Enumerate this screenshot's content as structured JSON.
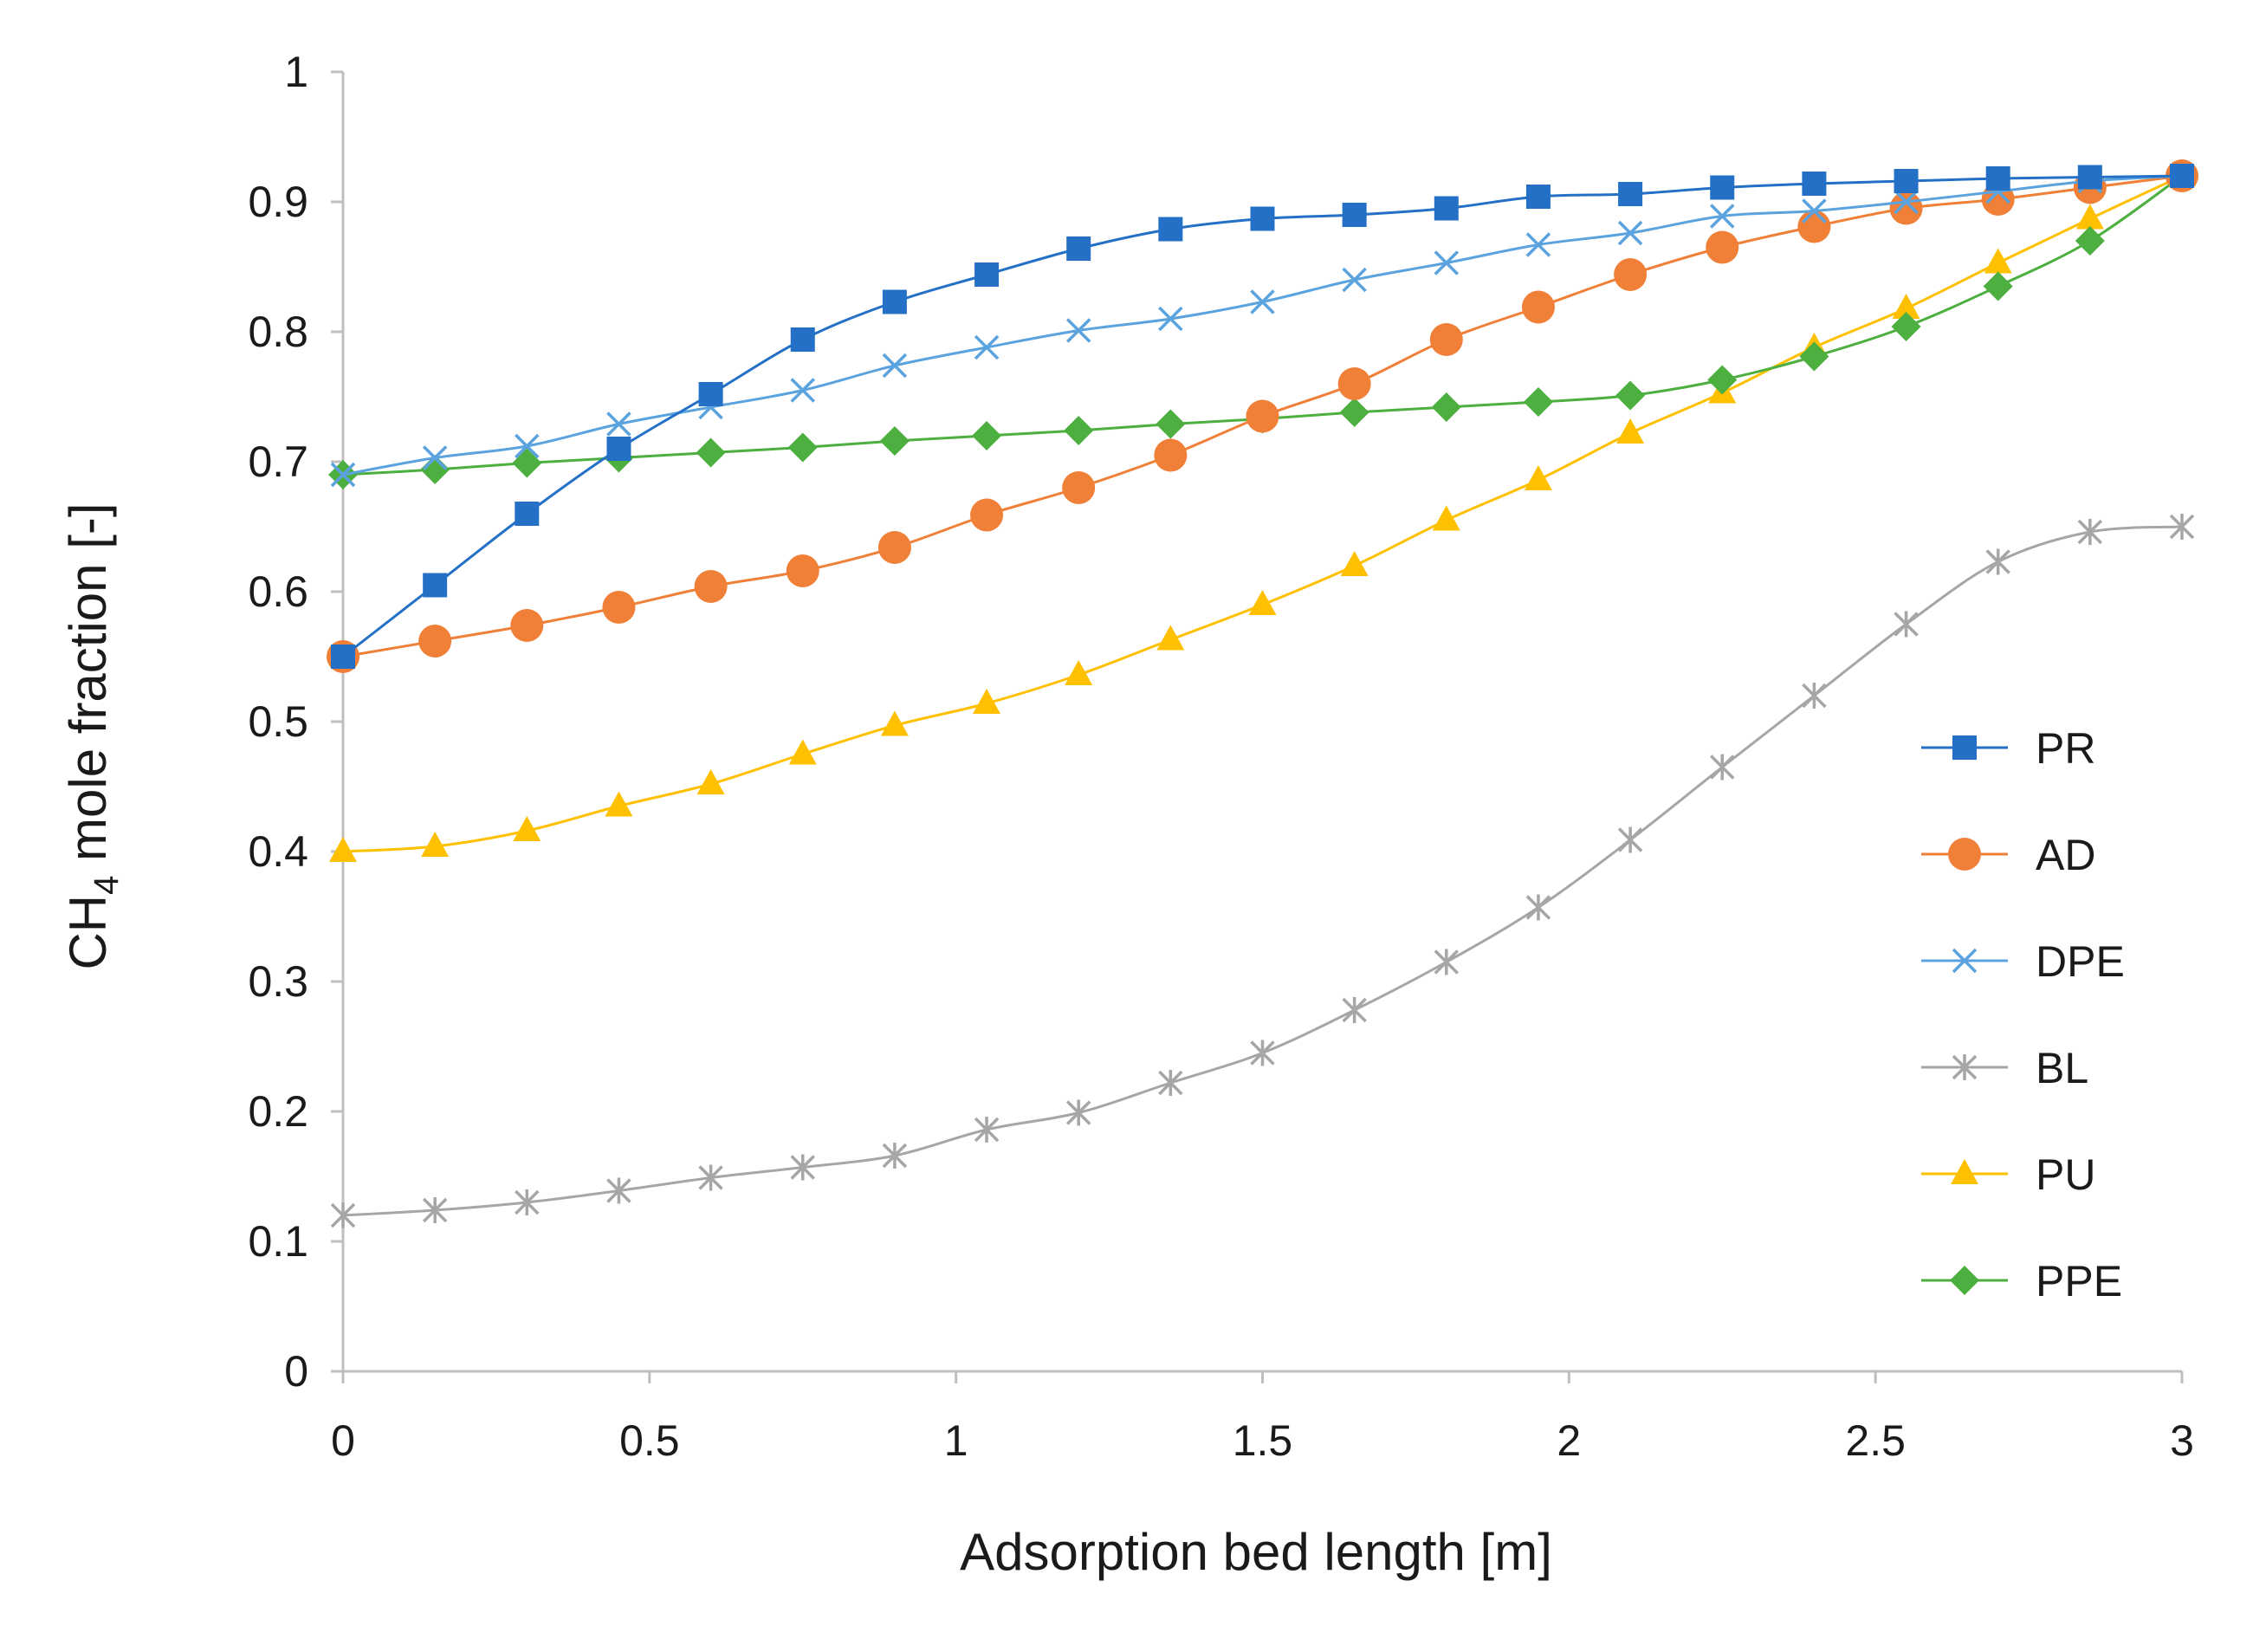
{
  "chart_data": {
    "type": "line",
    "title": "",
    "xlabel": "Adsorption bed length [m]",
    "ylabel_main": "CH",
    "ylabel_sub": "4",
    "ylabel_rest": " mole fraction [-]",
    "xlim": [
      0,
      3
    ],
    "ylim": [
      0,
      1
    ],
    "xticks": [
      0,
      0.5,
      1,
      1.5,
      2,
      2.5,
      3
    ],
    "xtick_labels": [
      "0",
      "0.5",
      "1",
      "1.5",
      "2",
      "2.5",
      "3"
    ],
    "yticks": [
      0,
      0.1,
      0.2,
      0.3,
      0.4,
      0.5,
      0.6,
      0.7,
      0.8,
      0.9,
      1
    ],
    "ytick_labels": [
      "0",
      "0.1",
      "0.2",
      "0.3",
      "0.4",
      "0.5",
      "0.6",
      "0.7",
      "0.8",
      "0.9",
      "1"
    ],
    "grid": false,
    "legend_position": "right",
    "x": [
      0,
      0.15,
      0.3,
      0.45,
      0.6,
      0.75,
      0.9,
      1.05,
      1.2,
      1.35,
      1.5,
      1.65,
      1.8,
      1.95,
      2.1,
      2.25,
      2.4,
      2.55,
      2.7,
      2.85,
      3.0
    ],
    "series": [
      {
        "name": "PR",
        "color": "#2470C6",
        "marker": "square",
        "values": [
          0.55,
          0.605,
          0.66,
          0.71,
          0.752,
          0.794,
          0.823,
          0.844,
          0.864,
          0.879,
          0.887,
          0.89,
          0.895,
          0.904,
          0.906,
          0.911,
          0.914,
          0.916,
          0.918,
          0.919,
          0.92
        ]
      },
      {
        "name": "AD",
        "color": "#F07F37",
        "marker": "circle",
        "values": [
          0.55,
          0.562,
          0.574,
          0.588,
          0.604,
          0.616,
          0.634,
          0.659,
          0.68,
          0.705,
          0.735,
          0.76,
          0.794,
          0.819,
          0.844,
          0.865,
          0.881,
          0.895,
          0.902,
          0.911,
          0.92
        ]
      },
      {
        "name": "DPE",
        "color": "#5BA3DE",
        "marker": "x",
        "values": [
          0.69,
          0.703,
          0.712,
          0.729,
          0.742,
          0.755,
          0.774,
          0.788,
          0.801,
          0.81,
          0.823,
          0.84,
          0.853,
          0.867,
          0.876,
          0.889,
          0.893,
          0.9,
          0.908,
          0.916,
          0.92
        ]
      },
      {
        "name": "BL",
        "color": "#A6A6A6",
        "marker": "asterisk",
        "values": [
          0.12,
          0.124,
          0.13,
          0.139,
          0.149,
          0.157,
          0.166,
          0.186,
          0.199,
          0.222,
          0.245,
          0.278,
          0.315,
          0.357,
          0.409,
          0.465,
          0.52,
          0.575,
          0.623,
          0.646,
          0.65
        ]
      },
      {
        "name": "PU",
        "color": "#FFC000",
        "marker": "triangle",
        "values": [
          0.4,
          0.404,
          0.416,
          0.435,
          0.452,
          0.475,
          0.497,
          0.514,
          0.536,
          0.563,
          0.59,
          0.62,
          0.655,
          0.686,
          0.722,
          0.753,
          0.788,
          0.818,
          0.853,
          0.887,
          0.92
        ]
      },
      {
        "name": "PPE",
        "color": "#4CAF3F",
        "marker": "diamond",
        "values": [
          0.69,
          0.694,
          0.699,
          0.703,
          0.707,
          0.711,
          0.716,
          0.72,
          0.724,
          0.729,
          0.733,
          0.738,
          0.742,
          0.746,
          0.751,
          0.763,
          0.781,
          0.804,
          0.835,
          0.87,
          0.92
        ]
      }
    ]
  }
}
